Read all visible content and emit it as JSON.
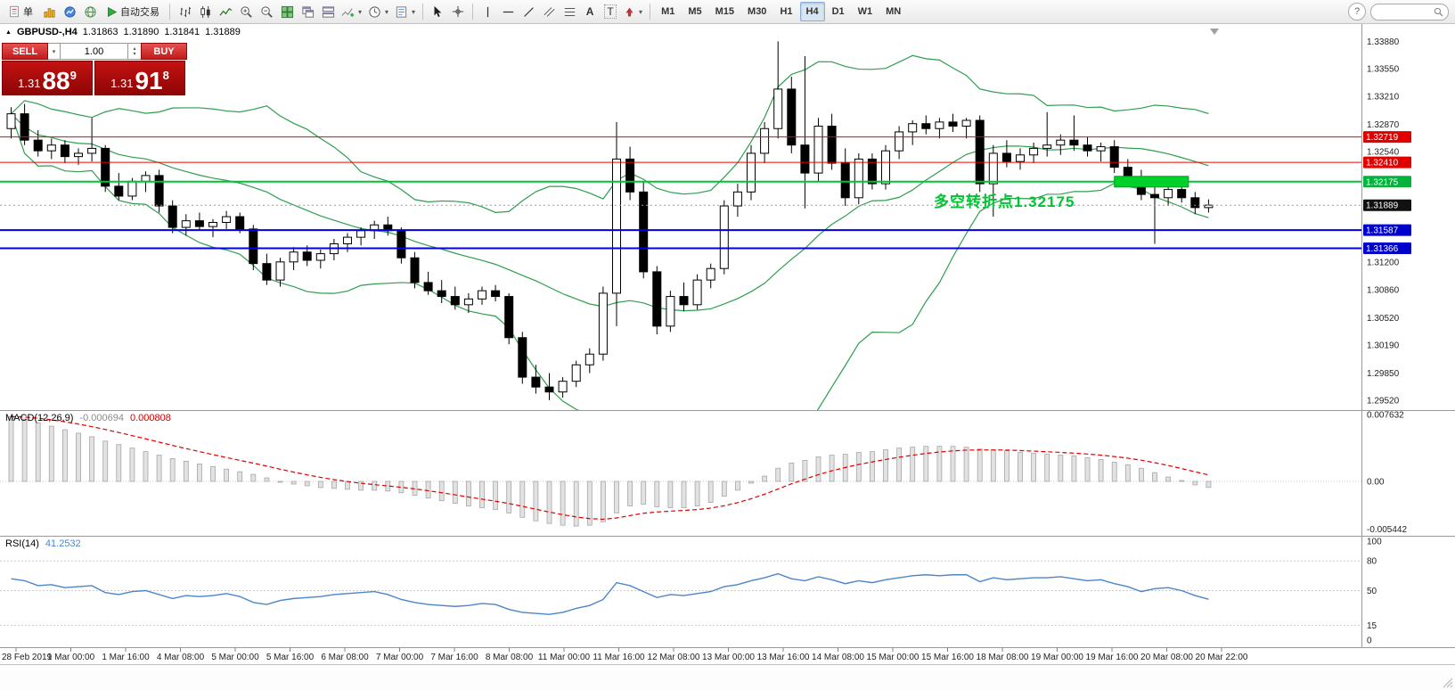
{
  "toolbar": {
    "new_order_label": "单",
    "autotrade_label": "自动交易",
    "timeframes": [
      "M1",
      "M5",
      "M15",
      "M30",
      "H1",
      "H4",
      "D1",
      "W1",
      "MN"
    ],
    "active_timeframe": "H4",
    "search_placeholder": ""
  },
  "glyphs": {
    "dropdown": "▾",
    "help": "?",
    "text_tool": "A",
    "label_tool": "T",
    "spinner_up": "▴",
    "spinner_down": "▾",
    "marker": "▲"
  },
  "chart": {
    "symbol_label": "GBPUSD-,H4",
    "ohlc": {
      "open": "1.31863",
      "high": "1.31890",
      "low": "1.31841",
      "close": "1.31889"
    },
    "one_click": {
      "sell_label": "SELL",
      "buy_label": "BUY",
      "volume": "1.00",
      "sell_price": {
        "big": "1.31",
        "mid": "88",
        "sup": "9"
      },
      "buy_price": {
        "big": "1.31",
        "mid": "91",
        "sup": "8"
      }
    },
    "annotation": {
      "text": "多空转折点1.32175",
      "color": "#00c432"
    },
    "hlines": [
      {
        "price": 1.32719,
        "color": "#f00000",
        "width": 1
      },
      {
        "price": 1.3241,
        "color": "#f00000",
        "width": 1
      },
      {
        "price": 1.32175,
        "color": "#00c432",
        "width": 2
      },
      {
        "price": 1.31587,
        "color": "#0000e0",
        "width": 2
      },
      {
        "price": 1.31366,
        "color": "#0000e0",
        "width": 2
      }
    ],
    "highlight_rect": {
      "x1_index": 82.3,
      "x2_index": 87.8,
      "price_top": 1.3224,
      "price_bottom": 1.3211,
      "color": "#00d02a",
      "border": "#00a020"
    },
    "price_axis": {
      "labels": [
        "1.33880",
        "1.33550",
        "1.33210",
        "1.32870",
        "1.32540",
        "1.31200",
        "1.30860",
        "1.30520",
        "1.30190",
        "1.29850",
        "1.29520"
      ],
      "badges": [
        {
          "text": "1.32719",
          "color": "#e00000"
        },
        {
          "text": "1.32410",
          "color": "#e00000"
        },
        {
          "text": "1.32175",
          "color": "#00b43c"
        },
        {
          "text": "1.31889",
          "color": "#111111"
        },
        {
          "text": "1.31587",
          "color": "#0000cc"
        },
        {
          "text": "1.31366",
          "color": "#0000cc"
        }
      ]
    }
  },
  "indicators": {
    "macd": {
      "label": "MACD(12,26,9)",
      "value1": "-0.000694",
      "value2": "0.000808",
      "axis": [
        "0.007632",
        "0.00",
        "-0.005442"
      ]
    },
    "rsi": {
      "label": "RSI(14)",
      "value": "41.2532",
      "axis": [
        "100",
        "80",
        "50",
        "15",
        "0"
      ],
      "levels": [
        80,
        50,
        15
      ]
    }
  },
  "colors": {
    "bollinger": "#2f9e4f",
    "macd_signal": "#e00000",
    "macd_bar_fill": "#e2e2e2",
    "macd_bar_stroke": "#a6a6a6",
    "rsi": "#4a86c8",
    "candle_up": "#ffffff",
    "candle_down": "#000000",
    "one_click_red": "#b01212"
  },
  "chart_data": {
    "type": "candlestick",
    "symbol": "GBPUSD",
    "timeframe": "H4",
    "bid": 1.31889,
    "price_range": [
      1.294,
      1.3409
    ],
    "bollinger_period": 20,
    "bollinger_deviation": 2,
    "candles": [
      [
        1.3282,
        1.3308,
        1.327,
        1.33
      ],
      [
        1.33,
        1.3312,
        1.3262,
        1.3268
      ],
      [
        1.3268,
        1.328,
        1.3248,
        1.3255
      ],
      [
        1.3255,
        1.327,
        1.3245,
        1.3262
      ],
      [
        1.3262,
        1.3268,
        1.324,
        1.3248
      ],
      [
        1.3248,
        1.3258,
        1.3238,
        1.3252
      ],
      [
        1.3252,
        1.3295,
        1.3242,
        1.3258
      ],
      [
        1.3258,
        1.3262,
        1.3205,
        1.3212
      ],
      [
        1.3212,
        1.3228,
        1.3195,
        1.32
      ],
      [
        1.32,
        1.3222,
        1.3195,
        1.3218
      ],
      [
        1.3218,
        1.323,
        1.3205,
        1.3225
      ],
      [
        1.3225,
        1.3232,
        1.318,
        1.3188
      ],
      [
        1.3188,
        1.3195,
        1.3155,
        1.3162
      ],
      [
        1.3162,
        1.3178,
        1.3152,
        1.317
      ],
      [
        1.317,
        1.318,
        1.3158,
        1.3163
      ],
      [
        1.3163,
        1.3172,
        1.315,
        1.3168
      ],
      [
        1.3168,
        1.3182,
        1.316,
        1.3175
      ],
      [
        1.3175,
        1.318,
        1.3155,
        1.316
      ],
      [
        1.316,
        1.3165,
        1.311,
        1.3118
      ],
      [
        1.3118,
        1.313,
        1.3092,
        1.3098
      ],
      [
        1.3098,
        1.3125,
        1.309,
        1.312
      ],
      [
        1.312,
        1.3138,
        1.311,
        1.3132
      ],
      [
        1.3132,
        1.314,
        1.3115,
        1.3122
      ],
      [
        1.3122,
        1.3135,
        1.3112,
        1.313
      ],
      [
        1.313,
        1.3148,
        1.3122,
        1.3142
      ],
      [
        1.3142,
        1.3155,
        1.3132,
        1.315
      ],
      [
        1.315,
        1.3162,
        1.314,
        1.3158
      ],
      [
        1.3158,
        1.317,
        1.3148,
        1.3165
      ],
      [
        1.3165,
        1.3175,
        1.3152,
        1.3158
      ],
      [
        1.3158,
        1.3162,
        1.3118,
        1.3125
      ],
      [
        1.3125,
        1.3132,
        1.3088,
        1.3095
      ],
      [
        1.3095,
        1.3108,
        1.308,
        1.3085
      ],
      [
        1.3085,
        1.3098,
        1.307,
        1.3078
      ],
      [
        1.3078,
        1.309,
        1.3062,
        1.3068
      ],
      [
        1.3068,
        1.3082,
        1.3058,
        1.3075
      ],
      [
        1.3075,
        1.309,
        1.3068,
        1.3085
      ],
      [
        1.3085,
        1.3092,
        1.3072,
        1.3078
      ],
      [
        1.3078,
        1.3082,
        1.302,
        1.3028
      ],
      [
        1.3028,
        1.3035,
        1.2972,
        1.298
      ],
      [
        1.298,
        1.2995,
        1.296,
        1.2968
      ],
      [
        1.2968,
        1.2985,
        1.2952,
        1.2962
      ],
      [
        1.2962,
        1.298,
        1.2955,
        1.2975
      ],
      [
        1.2975,
        1.3,
        1.2968,
        1.2995
      ],
      [
        1.2995,
        1.3015,
        1.2985,
        1.3008
      ],
      [
        1.3008,
        1.309,
        1.3,
        1.3082
      ],
      [
        1.3082,
        1.329,
        1.3042,
        1.3245
      ],
      [
        1.3245,
        1.326,
        1.3195,
        1.3205
      ],
      [
        1.3205,
        1.3218,
        1.31,
        1.3108
      ],
      [
        1.3108,
        1.3115,
        1.3032,
        1.3042
      ],
      [
        1.3042,
        1.3085,
        1.3035,
        1.3078
      ],
      [
        1.3078,
        1.3095,
        1.306,
        1.3068
      ],
      [
        1.3068,
        1.3105,
        1.3062,
        1.3098
      ],
      [
        1.3098,
        1.3118,
        1.3088,
        1.3112
      ],
      [
        1.3112,
        1.3195,
        1.3105,
        1.3188
      ],
      [
        1.3188,
        1.3215,
        1.3175,
        1.3205
      ],
      [
        1.3205,
        1.3262,
        1.3195,
        1.3252
      ],
      [
        1.3252,
        1.329,
        1.324,
        1.3282
      ],
      [
        1.3282,
        1.3388,
        1.327,
        1.333
      ],
      [
        1.333,
        1.3345,
        1.3252,
        1.3262
      ],
      [
        1.3262,
        1.337,
        1.3185,
        1.3228
      ],
      [
        1.3228,
        1.3295,
        1.3218,
        1.3285
      ],
      [
        1.3285,
        1.33,
        1.3232,
        1.324
      ],
      [
        1.324,
        1.3258,
        1.3188,
        1.3198
      ],
      [
        1.3198,
        1.3252,
        1.319,
        1.3245
      ],
      [
        1.3245,
        1.3252,
        1.3208,
        1.3215
      ],
      [
        1.3215,
        1.3262,
        1.3208,
        1.3255
      ],
      [
        1.3255,
        1.3285,
        1.3245,
        1.3278
      ],
      [
        1.3278,
        1.3292,
        1.3262,
        1.3288
      ],
      [
        1.3288,
        1.3298,
        1.3275,
        1.3282
      ],
      [
        1.3282,
        1.3295,
        1.327,
        1.329
      ],
      [
        1.329,
        1.33,
        1.3278,
        1.3285
      ],
      [
        1.3285,
        1.3295,
        1.327,
        1.3292
      ],
      [
        1.3292,
        1.3298,
        1.3205,
        1.3215
      ],
      [
        1.3215,
        1.3262,
        1.3175,
        1.3252
      ],
      [
        1.3252,
        1.3268,
        1.3235,
        1.3242
      ],
      [
        1.3242,
        1.3258,
        1.3232,
        1.325
      ],
      [
        1.325,
        1.3265,
        1.324,
        1.3258
      ],
      [
        1.3258,
        1.3302,
        1.3248,
        1.3262
      ],
      [
        1.3262,
        1.3275,
        1.325,
        1.3268
      ],
      [
        1.3268,
        1.3298,
        1.3255,
        1.3262
      ],
      [
        1.3262,
        1.3272,
        1.3248,
        1.3255
      ],
      [
        1.3255,
        1.3265,
        1.3242,
        1.326
      ],
      [
        1.326,
        1.3268,
        1.3228,
        1.3235
      ],
      [
        1.3235,
        1.3245,
        1.3215,
        1.3222
      ],
      [
        1.3222,
        1.3232,
        1.3195,
        1.3202
      ],
      [
        1.3202,
        1.3212,
        1.3142,
        1.3198
      ],
      [
        1.3198,
        1.3215,
        1.3188,
        1.3208
      ],
      [
        1.3208,
        1.3218,
        1.3192,
        1.3198
      ],
      [
        1.3198,
        1.3205,
        1.3178,
        1.3186
      ],
      [
        1.3186,
        1.3196,
        1.318,
        1.3189
      ]
    ],
    "macd_hist": [
      0.0074,
      0.0071,
      0.0067,
      0.0063,
      0.0059,
      0.0055,
      0.0051,
      0.0046,
      0.0042,
      0.0038,
      0.0034,
      0.003,
      0.0026,
      0.0023,
      0.002,
      0.0017,
      0.0014,
      0.0011,
      0.0008,
      0.0004,
      0.0,
      -0.0003,
      -0.0005,
      -0.0007,
      -0.0008,
      -0.0009,
      -0.001,
      -0.001,
      -0.0011,
      -0.0013,
      -0.0016,
      -0.0019,
      -0.0022,
      -0.0025,
      -0.0028,
      -0.003,
      -0.0032,
      -0.0036,
      -0.0041,
      -0.0045,
      -0.0048,
      -0.005,
      -0.0051,
      -0.005,
      -0.0046,
      -0.0036,
      -0.0028,
      -0.0026,
      -0.0029,
      -0.003,
      -0.003,
      -0.0028,
      -0.0024,
      -0.0017,
      -0.001,
      -0.0002,
      0.0006,
      0.0015,
      0.0021,
      0.0024,
      0.0028,
      0.003,
      0.0031,
      0.0033,
      0.0034,
      0.0036,
      0.0038,
      0.0039,
      0.004,
      0.004,
      0.004,
      0.0039,
      0.0037,
      0.0036,
      0.0035,
      0.0033,
      0.0032,
      0.0031,
      0.003,
      0.0029,
      0.0027,
      0.0025,
      0.0022,
      0.0019,
      0.0015,
      0.001,
      0.0005,
      0.0001,
      -0.0004,
      -0.000694
    ],
    "rsi": [
      62,
      60,
      55,
      56,
      53,
      54,
      55,
      48,
      46,
      49,
      50,
      46,
      42,
      45,
      44,
      45,
      47,
      44,
      38,
      36,
      40,
      42,
      43,
      44,
      46,
      47,
      48,
      49,
      46,
      41,
      38,
      36,
      35,
      34,
      35,
      37,
      36,
      31,
      28,
      27,
      26,
      28,
      32,
      35,
      41,
      58,
      55,
      49,
      43,
      46,
      45,
      47,
      49,
      54,
      56,
      60,
      63,
      67,
      62,
      60,
      64,
      61,
      57,
      60,
      58,
      61,
      63,
      65,
      66,
      65,
      66,
      66,
      59,
      63,
      61,
      62,
      63,
      63,
      64,
      62,
      60,
      61,
      57,
      54,
      49,
      52,
      53,
      50,
      45,
      41.25
    ],
    "time_labels": [
      "28 Feb 2019",
      "1 Mar 00:00",
      "1 Mar 16:00",
      "4 Mar 08:00",
      "5 Mar 00:00",
      "5 Mar 16:00",
      "6 Mar 08:00",
      "7 Mar 00:00",
      "7 Mar 16:00",
      "8 Mar 08:00",
      "11 Mar 00:00",
      "11 Mar 16:00",
      "12 Mar 08:00",
      "13 Mar 00:00",
      "13 Mar 16:00",
      "14 Mar 08:00",
      "15 Mar 00:00",
      "15 Mar 16:00",
      "18 Mar 08:00",
      "19 Mar 00:00",
      "19 Mar 16:00",
      "20 Mar 08:00",
      "20 Mar 22:00"
    ]
  }
}
